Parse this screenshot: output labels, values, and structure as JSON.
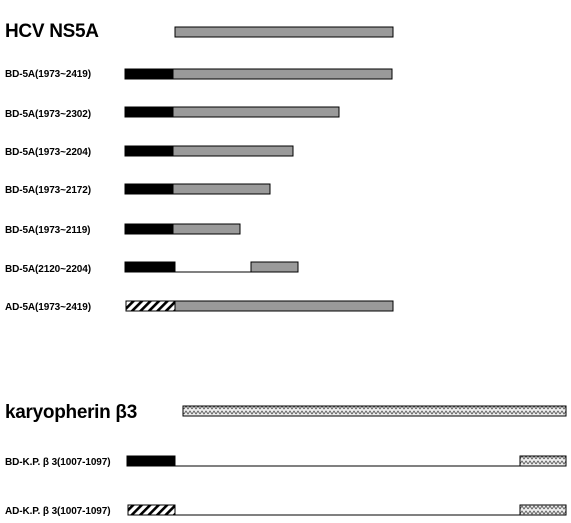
{
  "sections": [
    {
      "title": "HCV NS5A",
      "rows": [
        {
          "label": "BD-5A(1973~2419)"
        },
        {
          "label": "BD-5A(1973~2302)"
        },
        {
          "label": "BD-5A(1973~2204)"
        },
        {
          "label": "BD-5A(1973~2172)"
        },
        {
          "label": "BD-5A(1973~2119)"
        },
        {
          "label": "BD-5A(2120~2204)"
        },
        {
          "label": "AD-5A(1973~2419)"
        }
      ]
    },
    {
      "title": "karyopherin β3",
      "rows": [
        {
          "label": "BD-K.P. β 3(1007-1097)"
        },
        {
          "label": "AD-K.P. β 3(1007-1097)"
        }
      ]
    }
  ],
  "legend_colors": {
    "binding_domain": "#000000",
    "ns5a_region": "#9a9a9a",
    "karyopherin_region": "#e8e8e8",
    "activation_domain": "#ffffff"
  },
  "fill_patterns": {
    "binding_domain": "solid",
    "activation_domain": "diagonal-hatch",
    "ns5a_region": "solid-gray",
    "karyopherin_region": "zigzag"
  }
}
